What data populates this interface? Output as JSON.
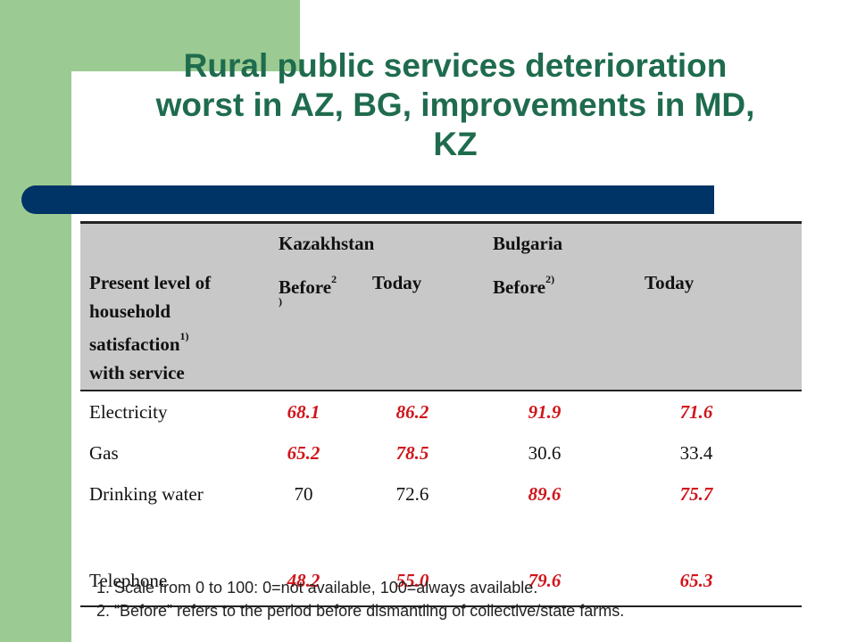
{
  "title": {
    "line1": "Rural public services deterioration",
    "line2": "worst in AZ, BG, improvements in MD,",
    "line3": "KZ"
  },
  "table": {
    "row_header": {
      "line1": "Present level of",
      "line2": "household",
      "line3": "satisfaction",
      "line3_sup": "1)",
      "line4": "with service"
    },
    "groups": [
      "Kazakhstan",
      "Bulgaria"
    ],
    "subheaders": {
      "kz_before": "Before",
      "kz_before_sup_top": "2",
      "kz_before_sup_bottom": ")",
      "kz_today": "Today",
      "bg_before": "Before",
      "bg_before_sup": "2)",
      "bg_today": "Today"
    },
    "rows": [
      {
        "label": "Electricity",
        "values": [
          "68.1",
          "86.2",
          "91.9",
          "71.6"
        ],
        "highlight": [
          true,
          true,
          true,
          true
        ]
      },
      {
        "label": "Gas",
        "values": [
          "65.2",
          "78.5",
          "30.6",
          "33.4"
        ],
        "highlight": [
          true,
          true,
          false,
          false
        ]
      },
      {
        "label": "Drinking water",
        "values": [
          "70",
          "72.6",
          "89.6",
          "75.7"
        ],
        "highlight": [
          false,
          false,
          true,
          true
        ]
      },
      {
        "label": "Telephone",
        "values": [
          "48.2",
          "55.0",
          "79.6",
          "65.3"
        ],
        "highlight": [
          true,
          true,
          true,
          true
        ]
      }
    ]
  },
  "notes": [
    "1. Scale from 0 to 100: 0=not available, 100=always available.",
    "2. “Before” refers to the period before dismantling of collective/state farms."
  ],
  "colors": {
    "title": "#1f6b4e",
    "accent_bar": "#003366",
    "green": "#9bcb92",
    "highlight": "#d0151b"
  }
}
